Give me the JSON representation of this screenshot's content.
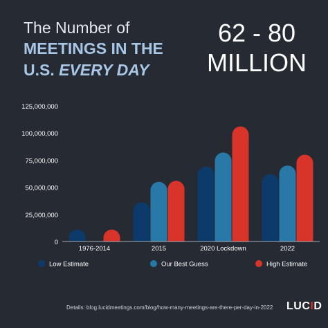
{
  "title": {
    "line1": "The Number of",
    "line2": "MEETINGS IN THE",
    "line3_plain": "U.S. ",
    "line3_emph": "EVERY DAY"
  },
  "headline": {
    "range": "62 - 80",
    "unit": "MILLION"
  },
  "footer": "Details: blog.lucidmeetings.com/blog/how-many-meetings-are-there-per-day-in-2022",
  "brand": {
    "prefix": "LUC",
    "accent_letter": "I",
    "suffix": "D"
  },
  "colors": {
    "background": "#262a33",
    "low": "#0c3b6b",
    "best": "#2878a8",
    "high": "#d8342a",
    "brand_accent": "#d8342a"
  },
  "chart_data": {
    "type": "bar",
    "categories": [
      "1976-2014",
      "2015",
      "2020 Lockdown",
      "2022"
    ],
    "series": [
      {
        "name": "Low Estimate",
        "values": [
          11000000,
          36000000,
          69000000,
          62000000
        ]
      },
      {
        "name": "Our Best Guess",
        "values": [
          null,
          55000000,
          82000000,
          70000000
        ]
      },
      {
        "name": "High Estimate",
        "values": [
          11000000,
          56000000,
          106000000,
          80000000
        ]
      }
    ],
    "ylim": [
      0,
      125000000
    ],
    "yticks": [
      0,
      25000000,
      50000000,
      75000000,
      100000000,
      125000000
    ],
    "ytick_labels": [
      "0",
      "25,000,000",
      "50,000,000",
      "75,000,000",
      "100,000,000",
      "125,000,000"
    ],
    "legend_position": "bottom",
    "grid": false
  }
}
